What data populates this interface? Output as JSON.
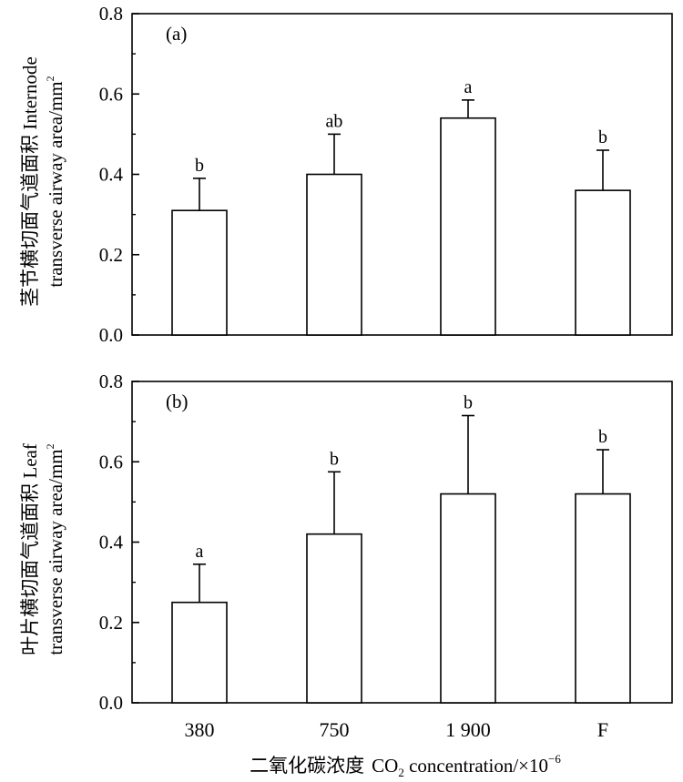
{
  "figure": {
    "xaxis_title": {
      "cn": "二氧化碳浓度",
      "en_pre": "CO",
      "en_sub": "2",
      "en_post": " concentration/×10",
      "en_sup": "−6"
    }
  },
  "chart_data": [
    {
      "type": "bar",
      "panel_label": "(a)",
      "categories": [
        "380",
        "750",
        "1 900",
        "F"
      ],
      "values": [
        0.31,
        0.4,
        0.54,
        0.36
      ],
      "errors": [
        0.08,
        0.1,
        0.045,
        0.1
      ],
      "significance": [
        "b",
        "ab",
        "a",
        "b"
      ],
      "ylim": [
        0,
        0.8
      ],
      "yticks": [
        "0.0",
        "0.2",
        "0.4",
        "0.6",
        "0.8"
      ],
      "ylabel_line1": "茎节横切面气道面积 Internode",
      "ylabel_line2": "transverse airway area/mm",
      "ylabel_sup": "2"
    },
    {
      "type": "bar",
      "panel_label": "(b)",
      "categories": [
        "380",
        "750",
        "1 900",
        "F"
      ],
      "values": [
        0.25,
        0.42,
        0.52,
        0.52
      ],
      "errors": [
        0.095,
        0.155,
        0.195,
        0.11
      ],
      "significance": [
        "a",
        "b",
        "b",
        "b"
      ],
      "ylim": [
        0,
        0.8
      ],
      "yticks": [
        "0.0",
        "0.2",
        "0.4",
        "0.6",
        "0.8"
      ],
      "ylabel_line1": "叶片横切面气道面积 Leaf",
      "ylabel_line2": "transverse airway area/mm",
      "ylabel_sup": "2"
    }
  ]
}
